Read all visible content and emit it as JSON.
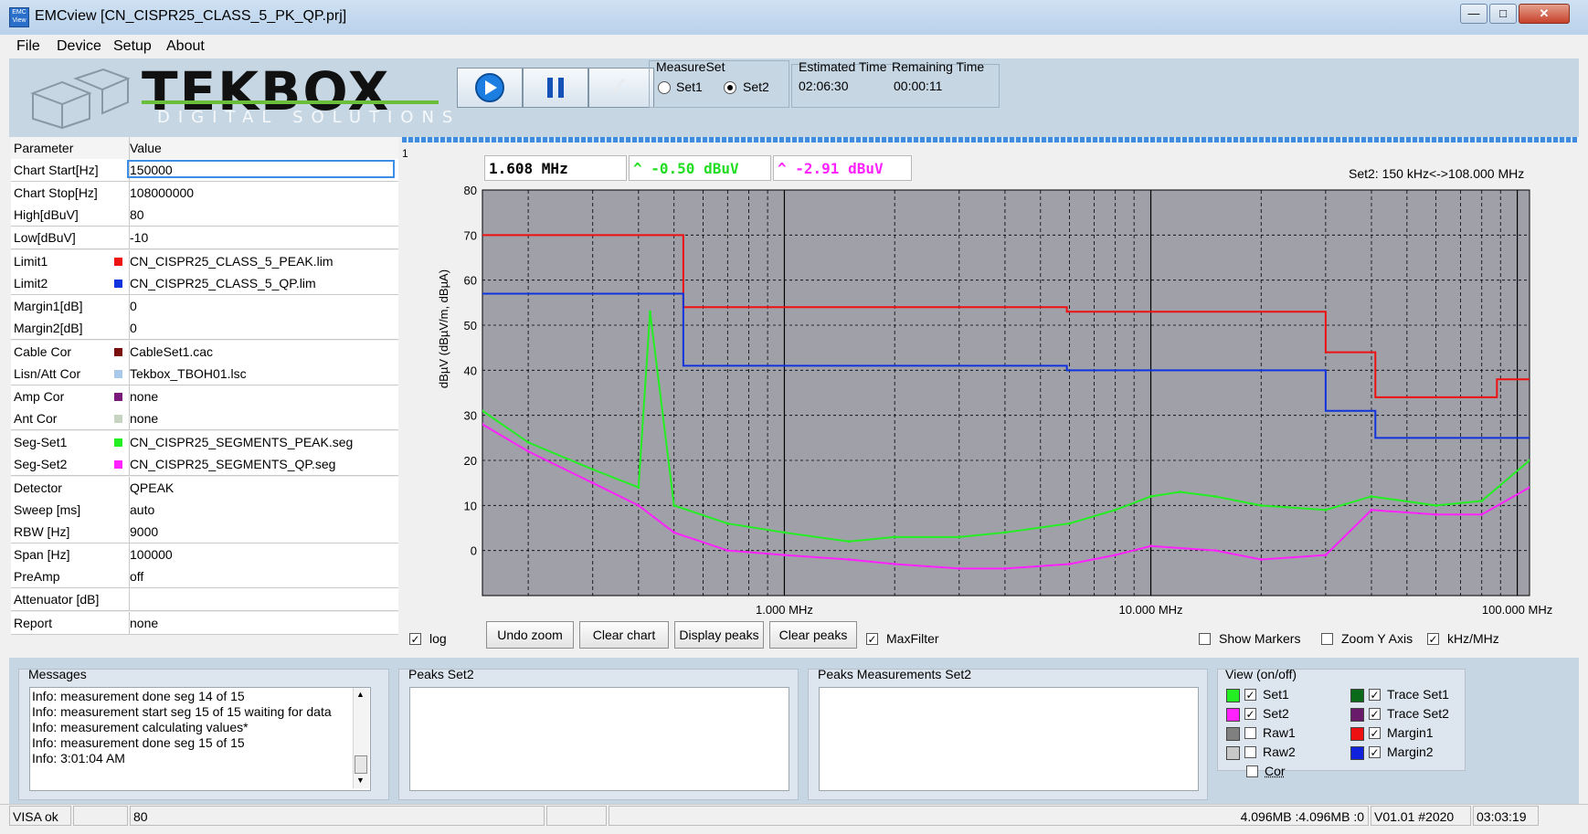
{
  "window": {
    "title": "EMCview [CN_CISPR25_CLASS_5_PK_QP.prj]",
    "app_icon": "EMC View"
  },
  "menu": [
    "File",
    "Device",
    "Setup",
    "About"
  ],
  "logo": {
    "main": "TEKBOX",
    "sub": "DIGITAL SOLUTIONS"
  },
  "toolbar": {
    "play": "play-icon",
    "pause": "pause-icon",
    "stop": "stop-icon"
  },
  "measure_set": {
    "title": "MeasureSet",
    "set1": "Set1",
    "set2": "Set2",
    "selected": "Set2"
  },
  "timing": {
    "est_label": "Estimated Time",
    "rem_label": "Remaining Time",
    "est": "02:06:30",
    "rem": "00:00:11"
  },
  "params": {
    "header": {
      "name": "Parameter",
      "value": "Value"
    },
    "rows": [
      {
        "name": "Chart Start[Hz]",
        "value": "150000",
        "color": ""
      },
      {
        "name": "Chart Stop[Hz]",
        "value": "108000000",
        "color": ""
      },
      {
        "name": "High[dBuV]",
        "value": "80",
        "color": ""
      },
      {
        "name": "Low[dBuV]",
        "value": "-10",
        "color": ""
      },
      {
        "name": "Limit1",
        "value": "CN_CISPR25_CLASS_5_PEAK.lim",
        "color": "#ee1111"
      },
      {
        "name": "Limit2",
        "value": "CN_CISPR25_CLASS_5_QP.lim",
        "color": "#1133dd"
      },
      {
        "name": "Margin1[dB]",
        "value": "0",
        "color": ""
      },
      {
        "name": "Margin2[dB]",
        "value": "0",
        "color": ""
      },
      {
        "name": "Cable Cor",
        "value": "CableSet1.cac",
        "color": "#7a0d0d"
      },
      {
        "name": "Lisn/Att Cor",
        "value": "Tekbox_TBOH01.lsc",
        "color": "#a9c8ea"
      },
      {
        "name": "Amp Cor",
        "value": "none",
        "color": "#7a1a7a"
      },
      {
        "name": "Ant Cor",
        "value": "none",
        "color": "#c7d4c2"
      },
      {
        "name": "Seg-Set1",
        "value": "CN_CISPR25_SEGMENTS_PEAK.seg",
        "color": "#22ee22"
      },
      {
        "name": "Seg-Set2",
        "value": "CN_CISPR25_SEGMENTS_QP.seg",
        "color": "#ff22ff"
      },
      {
        "name": "Detector",
        "value": "QPEAK",
        "color": ""
      },
      {
        "name": "Sweep [ms]",
        "value": "auto",
        "color": ""
      },
      {
        "name": "RBW [Hz]",
        "value": "9000",
        "color": ""
      },
      {
        "name": "Span [Hz]",
        "value": "100000",
        "color": ""
      },
      {
        "name": "PreAmp",
        "value": "off",
        "color": ""
      },
      {
        "name": "Attenuator [dB]",
        "value": "",
        "color": ""
      },
      {
        "name": "Report",
        "value": "none",
        "color": ""
      }
    ]
  },
  "chart": {
    "corner": "1",
    "marker_freq": "1.608 MHz",
    "marker_set1": "^ -0.50 dBuV",
    "marker_set2": "^ -2.91 dBuV",
    "range_label": "Set2: 150 kHz<->108.000 MHz",
    "ylabel": "dBµV (dBµV/m, dBµA)",
    "x_ticks": [
      "1.000 MHz",
      "10.000 MHz",
      "100.000 MHz"
    ],
    "y_ticks": [
      "80",
      "70",
      "60",
      "50",
      "40",
      "30",
      "20",
      "10",
      "0"
    ]
  },
  "chart_data": {
    "type": "line",
    "xscale": "log",
    "xlim": [
      0.15,
      108
    ],
    "ylim": [
      -10,
      80
    ],
    "x_unit": "MHz",
    "grid": true,
    "series": [
      {
        "name": "Limit1",
        "color": "#ee1111",
        "points": [
          [
            0.15,
            70
          ],
          [
            0.3,
            70
          ],
          [
            0.53,
            54
          ],
          [
            1.8,
            54
          ],
          [
            5.9,
            53
          ],
          [
            6.2,
            53
          ],
          [
            30,
            44
          ],
          [
            41,
            44
          ],
          [
            41,
            34
          ],
          [
            88,
            34
          ],
          [
            88,
            38
          ],
          [
            108,
            38
          ]
        ]
      },
      {
        "name": "Limit2",
        "color": "#1133dd",
        "points": [
          [
            0.15,
            57
          ],
          [
            0.3,
            57
          ],
          [
            0.53,
            41
          ],
          [
            1.8,
            41
          ],
          [
            5.9,
            40
          ],
          [
            6.2,
            40
          ],
          [
            30,
            31
          ],
          [
            41,
            31
          ],
          [
            41,
            25
          ],
          [
            108,
            25
          ]
        ]
      },
      {
        "name": "Set1",
        "color": "#22ee22",
        "points": [
          [
            0.15,
            31
          ],
          [
            0.2,
            24
          ],
          [
            0.3,
            18
          ],
          [
            0.4,
            14
          ],
          [
            0.43,
            53
          ],
          [
            0.5,
            10
          ],
          [
            0.7,
            6
          ],
          [
            1.0,
            4
          ],
          [
            1.5,
            2
          ],
          [
            2.0,
            3
          ],
          [
            3.0,
            3
          ],
          [
            4.0,
            4
          ],
          [
            6.0,
            6
          ],
          [
            8.0,
            9
          ],
          [
            10,
            12
          ],
          [
            12,
            13
          ],
          [
            15,
            12
          ],
          [
            20,
            10
          ],
          [
            30,
            9
          ],
          [
            40,
            12
          ],
          [
            60,
            10
          ],
          [
            80,
            11
          ],
          [
            108,
            20
          ]
        ]
      },
      {
        "name": "Set2",
        "color": "#ff22ff",
        "points": [
          [
            0.15,
            28
          ],
          [
            0.2,
            22
          ],
          [
            0.3,
            15
          ],
          [
            0.4,
            10
          ],
          [
            0.5,
            4
          ],
          [
            0.7,
            0
          ],
          [
            1.0,
            -1
          ],
          [
            1.5,
            -2
          ],
          [
            2.0,
            -3
          ],
          [
            3.0,
            -4
          ],
          [
            4.0,
            -4
          ],
          [
            6.0,
            -3
          ],
          [
            8.0,
            -1
          ],
          [
            10,
            1
          ],
          [
            15,
            0
          ],
          [
            20,
            -2
          ],
          [
            30,
            -1
          ],
          [
            40,
            9
          ],
          [
            60,
            8
          ],
          [
            80,
            8
          ],
          [
            108,
            14
          ]
        ]
      }
    ]
  },
  "chart_controls": {
    "log": "log",
    "log_checked": true,
    "undo": "Undo zoom",
    "clear_chart": "Clear chart",
    "display_peaks": "Display peaks",
    "clear_peaks": "Clear peaks",
    "maxfilter": "MaxFilter",
    "maxfilter_checked": true,
    "show_markers": "Show Markers",
    "zoom_y": "Zoom Y Axis",
    "khz_mhz": "kHz/MHz",
    "khz_checked": true
  },
  "messages": {
    "title": "Messages",
    "lines": [
      "Info: measurement done  seg 14 of 15",
      "Info: measurement start   seg 15 of 15 waiting for data",
      "Info: measurement calculating values*",
      "Info: measurement done  seg 15 of 15",
      "Info: 3:01:04 AM"
    ]
  },
  "peaks_set2": {
    "title": "Peaks Set2"
  },
  "peaks_meas_set2": {
    "title": "Peaks Measurements Set2"
  },
  "view": {
    "title": "View (on/off)",
    "left": [
      {
        "label": "Set1",
        "color": "#22ee22",
        "checked": true
      },
      {
        "label": "Set2",
        "color": "#ff22ff",
        "checked": true
      },
      {
        "label": "Raw1",
        "color": "#808080",
        "checked": false
      },
      {
        "label": "Raw2",
        "color": "#c8c8c8",
        "checked": false
      }
    ],
    "right": [
      {
        "label": "Trace Set1",
        "color": "#0a6a1a",
        "checked": true
      },
      {
        "label": "Trace Set2",
        "color": "#6a1a6a",
        "checked": true
      },
      {
        "label": "Margin1",
        "color": "#ee1111",
        "checked": true
      },
      {
        "label": "Margin2",
        "color": "#1122dd",
        "checked": true
      }
    ],
    "cor": "Cor"
  },
  "status": {
    "visa": "VISA ok",
    "val": "80",
    "mem": "4.096MB :4.096MB :0",
    "version": "V01.01 #2020",
    "time": "03:03:19"
  }
}
